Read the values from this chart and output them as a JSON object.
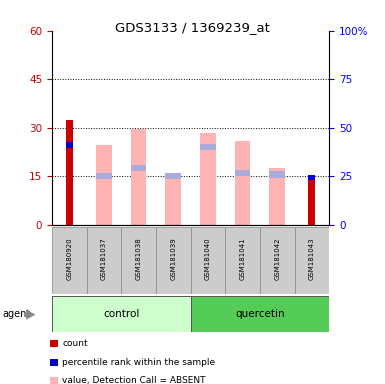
{
  "title": "GDS3133 / 1369239_at",
  "samples": [
    "GSM180920",
    "GSM181037",
    "GSM181038",
    "GSM181039",
    "GSM181040",
    "GSM181041",
    "GSM181042",
    "GSM181043"
  ],
  "count_values": [
    32.5,
    0,
    0,
    0,
    0,
    0,
    0,
    15.5
  ],
  "percentile_rank_values": [
    25.5,
    0,
    0,
    0,
    0,
    0,
    0,
    15.5
  ],
  "value_absent": [
    0,
    24.5,
    29.5,
    16.0,
    28.5,
    26.0,
    17.5,
    0
  ],
  "rank_absent_top": [
    0,
    16.0,
    18.5,
    16.0,
    25.0,
    17.0,
    16.5,
    0
  ],
  "rank_absent_height": [
    0,
    2.0,
    2.0,
    2.0,
    2.0,
    2.0,
    2.0,
    0
  ],
  "ylim_left": [
    0,
    60
  ],
  "ylim_right": [
    0,
    100
  ],
  "yticks_left": [
    0,
    15,
    30,
    45,
    60
  ],
  "yticks_right": [
    0,
    25,
    50,
    75,
    100
  ],
  "color_count": "#cc0000",
  "color_rank": "#0000cc",
  "color_value_absent": "#ffb3b3",
  "color_rank_absent": "#aaaadd",
  "color_control_bg": "#ccffcc",
  "color_quercetin_bg": "#55cc55",
  "color_sample_bg": "#cccccc",
  "bar_width": 0.45,
  "red_bar_width": 0.2
}
